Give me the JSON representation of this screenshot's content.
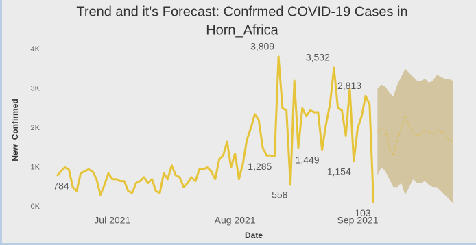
{
  "chart_data": {
    "type": "line",
    "title": [
      "Trend and it's Forecast: Confrmed COVID-19 Cases in",
      "Horn_Africa"
    ],
    "x_label": "Date",
    "y_label": "New_Confirmed",
    "categories": [
      null,
      null,
      null,
      null,
      null,
      null,
      null,
      null,
      null,
      null,
      null,
      null,
      null,
      null,
      "Jul 2021",
      null,
      null,
      null,
      null,
      null,
      null,
      null,
      null,
      null,
      null,
      null,
      null,
      null,
      null,
      null,
      null,
      null,
      null,
      null,
      null,
      null,
      null,
      null,
      null,
      null,
      null,
      null,
      null,
      null,
      null,
      "Aug 2021",
      null,
      null,
      null,
      null,
      null,
      null,
      null,
      null,
      null,
      null,
      null,
      null,
      null,
      null,
      null,
      null,
      null,
      null,
      null,
      null,
      null,
      null,
      null,
      null,
      null,
      null,
      null,
      null,
      null,
      null,
      "Sep 2021",
      null,
      null,
      null,
      null,
      null,
      null,
      null,
      null,
      null,
      null,
      null,
      null,
      null,
      null,
      null,
      null,
      null,
      null,
      null,
      null,
      null,
      null,
      null,
      null
    ],
    "ylim": [
      0,
      4000
    ],
    "yticks": [
      {
        "value": 0,
        "label": "0K"
      },
      {
        "value": 1000,
        "label": "1K"
      },
      {
        "value": 2000,
        "label": "2K"
      },
      {
        "value": 3000,
        "label": "3K"
      },
      {
        "value": 4000,
        "label": "4K"
      }
    ],
    "grid": false,
    "series": [
      {
        "color": "#e6c43a",
        "style": "solid",
        "values": [
          784,
          900,
          1000,
          950,
          500,
          400,
          850,
          900,
          950,
          900,
          700,
          300,
          550,
          850,
          700,
          700,
          650,
          650,
          400,
          350,
          600,
          650,
          750,
          600,
          700,
          400,
          350,
          850,
          700,
          1050,
          800,
          750,
          500,
          600,
          750,
          650,
          950,
          950,
          1000,
          900,
          700,
          1200,
          1300,
          1650,
          1000,
          1350,
          700,
          1100,
          1700,
          2000,
          2350,
          2200,
          1500,
          1300,
          1300,
          1285,
          3809,
          2500,
          2450,
          558,
          3200,
          1500,
          2500,
          2300,
          2450,
          2400,
          2400,
          1449,
          2100,
          2600,
          3532,
          2500,
          2450,
          1800,
          3000,
          1154,
          2000,
          2300,
          2813,
          2600,
          103,
          null,
          null,
          null,
          null,
          null,
          null,
          null,
          null,
          null,
          null,
          null,
          null,
          null,
          null,
          null,
          null,
          null,
          null,
          null,
          null
        ],
        "value_labels": [
          "784",
          null,
          null,
          null,
          null,
          null,
          null,
          null,
          null,
          null,
          null,
          null,
          null,
          null,
          null,
          null,
          null,
          null,
          null,
          null,
          null,
          null,
          null,
          null,
          null,
          null,
          null,
          null,
          null,
          null,
          null,
          null,
          null,
          null,
          null,
          null,
          null,
          null,
          null,
          null,
          null,
          null,
          null,
          null,
          null,
          null,
          null,
          null,
          null,
          null,
          null,
          null,
          null,
          null,
          null,
          "1,285",
          "3,809",
          null,
          null,
          "558",
          null,
          null,
          null,
          null,
          null,
          null,
          null,
          "1,449",
          null,
          null,
          "3,532",
          null,
          null,
          null,
          null,
          "1,154",
          null,
          null,
          "2,813",
          null,
          "103",
          null,
          null,
          null,
          null,
          null,
          null,
          null,
          null,
          null,
          null,
          null,
          null,
          null,
          null,
          null,
          null,
          null,
          null,
          null,
          null
        ]
      },
      {
        "color": "#d9bf5c",
        "style": "dotted",
        "values": [
          null,
          null,
          null,
          null,
          null,
          null,
          null,
          null,
          null,
          null,
          null,
          null,
          null,
          null,
          null,
          null,
          null,
          null,
          null,
          null,
          null,
          null,
          null,
          null,
          null,
          null,
          null,
          null,
          null,
          null,
          null,
          null,
          null,
          null,
          null,
          null,
          null,
          null,
          null,
          null,
          null,
          null,
          null,
          null,
          null,
          null,
          null,
          null,
          null,
          null,
          null,
          null,
          null,
          null,
          null,
          null,
          null,
          null,
          null,
          null,
          null,
          null,
          null,
          null,
          null,
          null,
          null,
          null,
          null,
          null,
          null,
          null,
          null,
          null,
          null,
          null,
          null,
          null,
          null,
          null,
          null,
          1900,
          2000,
          1950,
          1500,
          1300,
          1700,
          2000,
          2300,
          2050,
          1900,
          1800,
          1850,
          1950,
          1900,
          1850,
          1950,
          1900,
          1850,
          1700,
          1650
        ]
      }
    ],
    "band": {
      "color": "#cbb887",
      "upper": [
        null,
        null,
        null,
        null,
        null,
        null,
        null,
        null,
        null,
        null,
        null,
        null,
        null,
        null,
        null,
        null,
        null,
        null,
        null,
        null,
        null,
        null,
        null,
        null,
        null,
        null,
        null,
        null,
        null,
        null,
        null,
        null,
        null,
        null,
        null,
        null,
        null,
        null,
        null,
        null,
        null,
        null,
        null,
        null,
        null,
        null,
        null,
        null,
        null,
        null,
        null,
        null,
        null,
        null,
        null,
        null,
        null,
        null,
        null,
        null,
        null,
        null,
        null,
        null,
        null,
        null,
        null,
        null,
        null,
        null,
        null,
        null,
        null,
        null,
        null,
        null,
        null,
        null,
        null,
        null,
        null,
        3000,
        3100,
        3050,
        2900,
        2800,
        3100,
        3300,
        3500,
        3400,
        3300,
        3200,
        3200,
        3250,
        3150,
        3200,
        3350,
        3300,
        3250,
        3250,
        3200
      ],
      "lower": [
        null,
        null,
        null,
        null,
        null,
        null,
        null,
        null,
        null,
        null,
        null,
        null,
        null,
        null,
        null,
        null,
        null,
        null,
        null,
        null,
        null,
        null,
        null,
        null,
        null,
        null,
        null,
        null,
        null,
        null,
        null,
        null,
        null,
        null,
        null,
        null,
        null,
        null,
        null,
        null,
        null,
        null,
        null,
        null,
        null,
        null,
        null,
        null,
        null,
        null,
        null,
        null,
        null,
        null,
        null,
        null,
        null,
        null,
        null,
        null,
        null,
        null,
        null,
        null,
        null,
        null,
        null,
        null,
        null,
        null,
        null,
        null,
        null,
        null,
        null,
        null,
        null,
        null,
        null,
        null,
        null,
        800,
        1000,
        900,
        700,
        500,
        500,
        600,
        300,
        500,
        700,
        600,
        600,
        650,
        550,
        500,
        500,
        400,
        300,
        200,
        100
      ]
    }
  }
}
